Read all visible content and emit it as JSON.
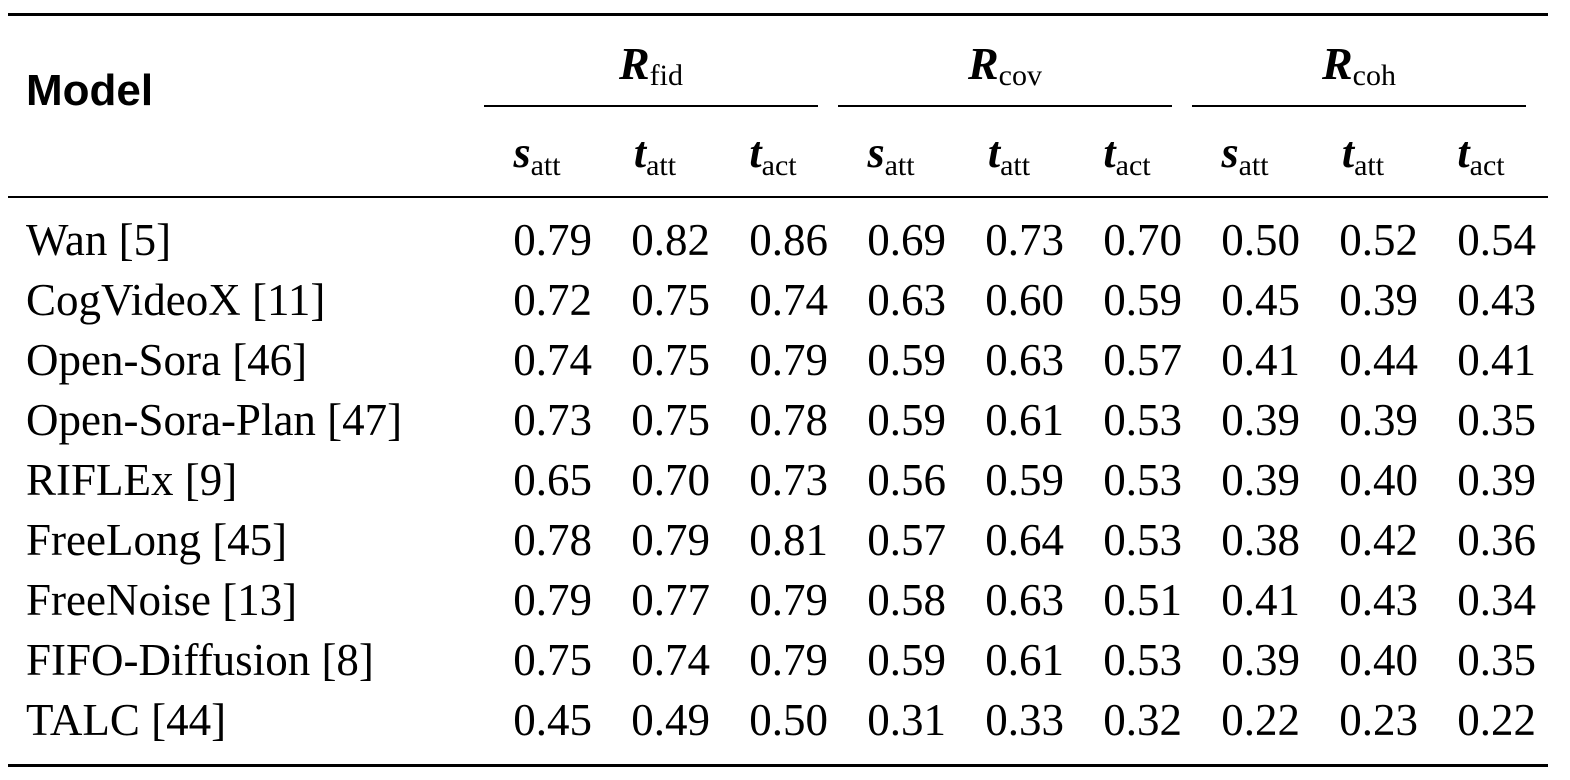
{
  "table": {
    "model_header": "Model",
    "groups": [
      {
        "symbol": "R",
        "subscript": "fid"
      },
      {
        "symbol": "R",
        "subscript": "cov"
      },
      {
        "symbol": "R",
        "subscript": "coh"
      }
    ],
    "subheaders": [
      {
        "symbol": "s",
        "subscript": "att"
      },
      {
        "symbol": "t",
        "subscript": "att"
      },
      {
        "symbol": "t",
        "subscript": "act"
      }
    ],
    "rows": [
      {
        "model": "Wan [5]",
        "values": [
          "0.79",
          "0.82",
          "0.86",
          "0.69",
          "0.73",
          "0.70",
          "0.50",
          "0.52",
          "0.54"
        ]
      },
      {
        "model": "CogVideoX [11]",
        "values": [
          "0.72",
          "0.75",
          "0.74",
          "0.63",
          "0.60",
          "0.59",
          "0.45",
          "0.39",
          "0.43"
        ]
      },
      {
        "model": "Open-Sora [46]",
        "values": [
          "0.74",
          "0.75",
          "0.79",
          "0.59",
          "0.63",
          "0.57",
          "0.41",
          "0.44",
          "0.41"
        ]
      },
      {
        "model": "Open-Sora-Plan [47]",
        "values": [
          "0.73",
          "0.75",
          "0.78",
          "0.59",
          "0.61",
          "0.53",
          "0.39",
          "0.39",
          "0.35"
        ]
      },
      {
        "model": "RIFLEx [9]",
        "values": [
          "0.65",
          "0.70",
          "0.73",
          "0.56",
          "0.59",
          "0.53",
          "0.39",
          "0.40",
          "0.39"
        ]
      },
      {
        "model": "FreeLong [45]",
        "values": [
          "0.78",
          "0.79",
          "0.81",
          "0.57",
          "0.64",
          "0.53",
          "0.38",
          "0.42",
          "0.36"
        ]
      },
      {
        "model": "FreeNoise [13]",
        "values": [
          "0.79",
          "0.77",
          "0.79",
          "0.58",
          "0.63",
          "0.51",
          "0.41",
          "0.43",
          "0.34"
        ]
      },
      {
        "model": "FIFO-Diffusion [8]",
        "values": [
          "0.75",
          "0.74",
          "0.79",
          "0.59",
          "0.61",
          "0.53",
          "0.39",
          "0.40",
          "0.35"
        ]
      },
      {
        "model": "TALC [44]",
        "values": [
          "0.45",
          "0.49",
          "0.50",
          "0.31",
          "0.33",
          "0.32",
          "0.22",
          "0.23",
          "0.22"
        ]
      }
    ]
  }
}
